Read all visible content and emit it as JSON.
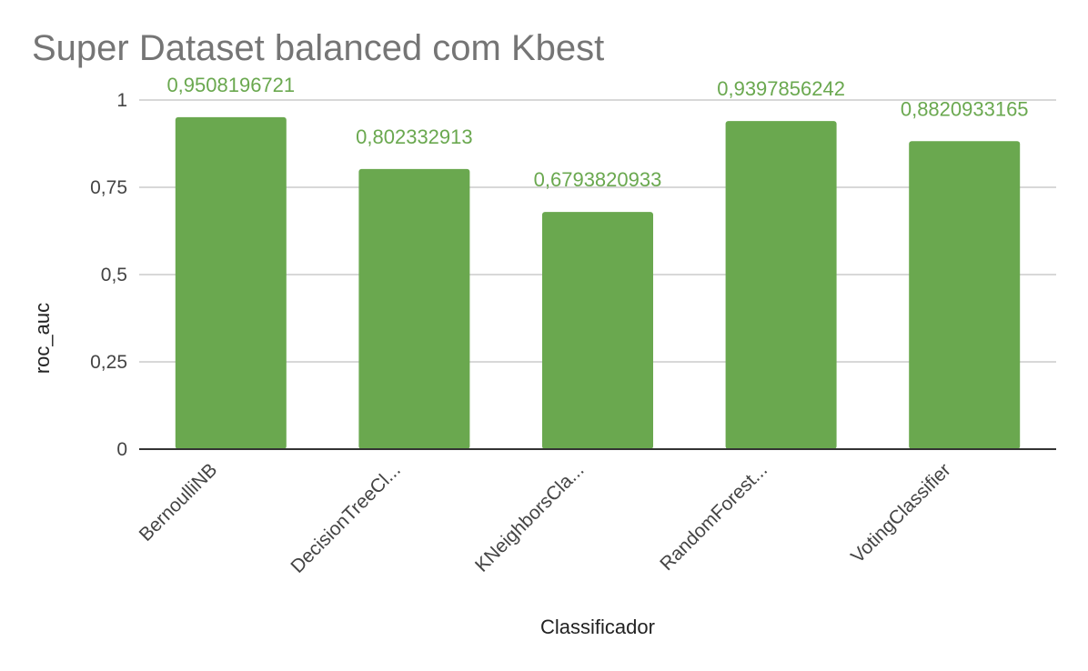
{
  "chart_data": {
    "type": "bar",
    "title": "Super Dataset balanced com Kbest",
    "xlabel": "Classificador",
    "ylabel": "roc_auc",
    "categories": [
      "BernoulliNB",
      "DecisionTreeCl...",
      "KNeighborsCla...",
      "RandomForest...",
      "VotingClassifier"
    ],
    "values": [
      0.9508196721,
      0.802332913,
      0.6793820933,
      0.9397856242,
      0.8820933165
    ],
    "data_labels": [
      "0,9508196721",
      "0,802332913",
      "0,6793820933",
      "0,9397856242",
      "0,8820933165"
    ],
    "yticks": [
      0,
      0.25,
      0.5,
      0.75,
      1
    ],
    "ytick_labels": [
      "0",
      "0,25",
      "0,5",
      "0,75",
      "1"
    ],
    "ylim": [
      0,
      1
    ],
    "grid": true,
    "legend": "none",
    "bar_color": "#6aa84f",
    "label_color": "#6aa84f"
  }
}
